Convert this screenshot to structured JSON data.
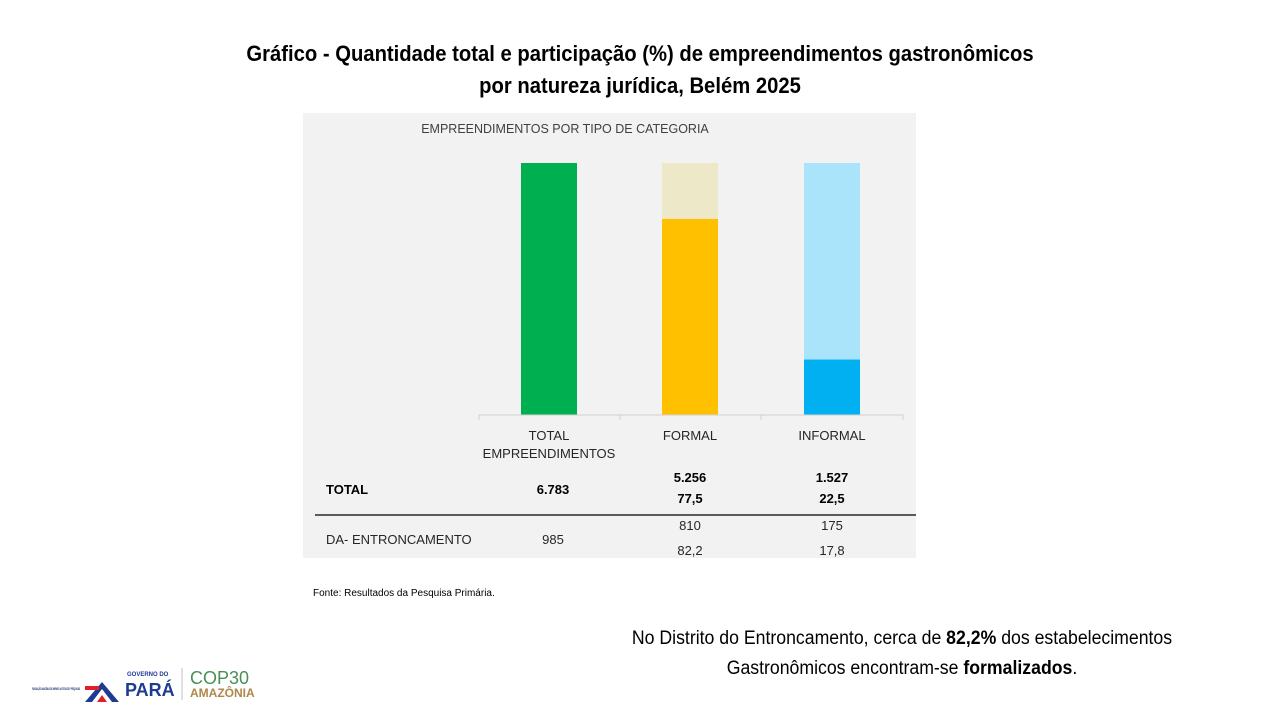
{
  "slide": {
    "title_line1": "Gráfico - Quantidade total e participação (%) de empreendimentos gastronômicos",
    "title_line2": "por natureza jurídica, Belém 2025",
    "source": "Fonte: Resultados da Pesquisa Primária.",
    "note_part1": "No Distrito do Entroncamento, cerca de ",
    "note_bold1": "82,2%",
    "note_part2": " dos estabelecimentos",
    "note_part3": "Gastronômicos encontram-se ",
    "note_bold2": "formalizados",
    "note_part4": "."
  },
  "logos": {
    "fapespa_text": "FUNDAÇÃO AMAZÔNIA DE AMPARO A ESTUDOS E PESQUISAS",
    "governo_text": "GOVERNO DO",
    "para_text": "PARÁ",
    "cop_text": "COP30",
    "amazonia_text": "AMAZÔNIA"
  },
  "chart_data": {
    "type": "bar",
    "title": "EMPREENDIMENTOS POR TIPO DE CATEGORIA",
    "categories": [
      "TOTAL EMPREENDIMENTOS",
      "FORMAL",
      "INFORMAL"
    ],
    "category_lines": [
      [
        "TOTAL",
        "EMPREENDIMENTOS"
      ],
      [
        "FORMAL"
      ],
      [
        "INFORMAL"
      ]
    ],
    "bars": [
      {
        "category": "TOTAL EMPREENDIMENTOS",
        "fill_fraction": 1.0,
        "color": "#00b050",
        "bg_color": "#00b050"
      },
      {
        "category": "FORMAL",
        "fill_fraction": 0.778,
        "color": "#ffc000",
        "bg_color": "#ede8c8"
      },
      {
        "category": "INFORMAL",
        "fill_fraction": 0.22,
        "color": "#00b0f0",
        "bg_color": "#a9e4fb"
      }
    ],
    "table": {
      "rows": [
        {
          "label": "TOTAL",
          "total": "6.783",
          "formal": [
            "5.256",
            "77,5"
          ],
          "informal": [
            "1.527",
            "22,5"
          ],
          "bold": true
        },
        {
          "label": "DA- ENTRONCAMENTO",
          "total": "985",
          "formal": [
            "810",
            "82,2"
          ],
          "informal": [
            "175",
            "17,8"
          ],
          "bold": false
        }
      ]
    }
  }
}
